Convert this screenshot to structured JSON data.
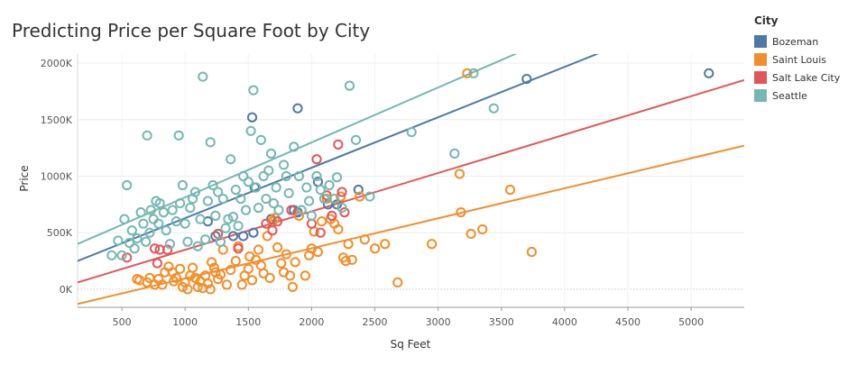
{
  "chart_data": {
    "type": "scatter",
    "title": "Predicting Price per Square Foot by City",
    "xlabel": "Sq Feet",
    "ylabel": "Price",
    "xlim": [
      150,
      5420
    ],
    "ylim": [
      -160000,
      2080000
    ],
    "x_ticks": [
      500,
      1000,
      1500,
      2000,
      2500,
      3000,
      3500,
      4000,
      4500,
      5000
    ],
    "x_tick_labels": [
      "500",
      "1000",
      "1500",
      "2000",
      "2500",
      "3000",
      "3500",
      "4000",
      "4500",
      "5000"
    ],
    "y_ticks": [
      0,
      500000,
      1000000,
      1500000,
      2000000
    ],
    "y_tick_labels": [
      "0K",
      "500K",
      "1000K",
      "1500K",
      "2000K"
    ],
    "grid": true,
    "legend_title": "City",
    "legend_position": "right",
    "series": [
      {
        "name": "Bozeman",
        "color": "#4e79a7",
        "trend": [
          [
            150,
            250000
          ],
          [
            5420,
            2600000
          ]
        ],
        "points": [
          [
            1380,
            470000
          ],
          [
            1460,
            470000
          ],
          [
            1530,
            1520000
          ],
          [
            1540,
            500000
          ],
          [
            1550,
            900000
          ],
          [
            1860,
            700000
          ],
          [
            1890,
            680000
          ],
          [
            1890,
            1600000
          ],
          [
            2050,
            950000
          ],
          [
            2130,
            750000
          ],
          [
            2200,
            750000
          ],
          [
            2370,
            880000
          ],
          [
            3700,
            1860000
          ],
          [
            5140,
            1910000
          ],
          [
            1180,
            600000
          ],
          [
            1240,
            470000
          ],
          [
            1680,
            620000
          ]
        ]
      },
      {
        "name": "Saint Louis",
        "color": "#f28e2b",
        "trend": [
          [
            150,
            -130000
          ],
          [
            5420,
            1270000
          ]
        ],
        "points": [
          [
            620,
            90000
          ],
          [
            640,
            80000
          ],
          [
            700,
            60000
          ],
          [
            720,
            100000
          ],
          [
            760,
            40000
          ],
          [
            790,
            90000
          ],
          [
            820,
            40000
          ],
          [
            840,
            150000
          ],
          [
            870,
            200000
          ],
          [
            900,
            150000
          ],
          [
            910,
            70000
          ],
          [
            930,
            100000
          ],
          [
            960,
            180000
          ],
          [
            980,
            20000
          ],
          [
            1000,
            60000
          ],
          [
            1020,
            0
          ],
          [
            1040,
            120000
          ],
          [
            1060,
            190000
          ],
          [
            1080,
            100000
          ],
          [
            1100,
            20000
          ],
          [
            1120,
            70000
          ],
          [
            1140,
            10000
          ],
          [
            1160,
            120000
          ],
          [
            1180,
            50000
          ],
          [
            1200,
            0
          ],
          [
            1210,
            240000
          ],
          [
            1230,
            190000
          ],
          [
            1240,
            150000
          ],
          [
            1260,
            90000
          ],
          [
            1280,
            130000
          ],
          [
            1300,
            350000
          ],
          [
            1330,
            40000
          ],
          [
            1360,
            170000
          ],
          [
            1400,
            250000
          ],
          [
            1420,
            380000
          ],
          [
            1450,
            40000
          ],
          [
            1470,
            120000
          ],
          [
            1500,
            180000
          ],
          [
            1510,
            290000
          ],
          [
            1530,
            80000
          ],
          [
            1560,
            260000
          ],
          [
            1580,
            350000
          ],
          [
            1600,
            210000
          ],
          [
            1620,
            140000
          ],
          [
            1650,
            470000
          ],
          [
            1670,
            100000
          ],
          [
            1690,
            600000
          ],
          [
            1710,
            630000
          ],
          [
            1730,
            370000
          ],
          [
            1760,
            230000
          ],
          [
            1780,
            150000
          ],
          [
            1800,
            310000
          ],
          [
            1830,
            120000
          ],
          [
            1850,
            20000
          ],
          [
            1870,
            240000
          ],
          [
            1900,
            650000
          ],
          [
            1950,
            120000
          ],
          [
            1980,
            300000
          ],
          [
            2000,
            360000
          ],
          [
            2020,
            510000
          ],
          [
            2050,
            330000
          ],
          [
            2080,
            600000
          ],
          [
            2120,
            800000
          ],
          [
            2150,
            620000
          ],
          [
            2180,
            580000
          ],
          [
            2210,
            530000
          ],
          [
            2230,
            820000
          ],
          [
            2250,
            280000
          ],
          [
            2270,
            250000
          ],
          [
            2290,
            400000
          ],
          [
            2320,
            260000
          ],
          [
            2380,
            820000
          ],
          [
            2420,
            440000
          ],
          [
            2500,
            360000
          ],
          [
            2580,
            400000
          ],
          [
            2680,
            60000
          ],
          [
            2950,
            400000
          ],
          [
            3170,
            1020000
          ],
          [
            3180,
            680000
          ],
          [
            3260,
            490000
          ],
          [
            3350,
            530000
          ],
          [
            3570,
            880000
          ],
          [
            3740,
            330000
          ],
          [
            3230,
            1910000
          ]
        ]
      },
      {
        "name": "Salt Lake City",
        "color": "#e15759",
        "trend": [
          [
            150,
            60000
          ],
          [
            5420,
            1850000
          ]
        ],
        "points": [
          [
            540,
            280000
          ],
          [
            760,
            360000
          ],
          [
            780,
            230000
          ],
          [
            800,
            350000
          ],
          [
            860,
            350000
          ],
          [
            1260,
            490000
          ],
          [
            1420,
            360000
          ],
          [
            1640,
            580000
          ],
          [
            1690,
            520000
          ],
          [
            1730,
            600000
          ],
          [
            1840,
            700000
          ],
          [
            2000,
            580000
          ],
          [
            2040,
            1150000
          ],
          [
            2070,
            500000
          ],
          [
            2120,
            830000
          ],
          [
            2160,
            650000
          ],
          [
            2210,
            1280000
          ],
          [
            2240,
            860000
          ],
          [
            2260,
            680000
          ]
        ]
      },
      {
        "name": "Seattle",
        "color": "#76b7b2",
        "trend": [
          [
            150,
            400000
          ],
          [
            5420,
            2960000
          ]
        ],
        "points": [
          [
            420,
            300000
          ],
          [
            470,
            430000
          ],
          [
            500,
            300000
          ],
          [
            520,
            620000
          ],
          [
            540,
            920000
          ],
          [
            560,
            410000
          ],
          [
            580,
            520000
          ],
          [
            600,
            360000
          ],
          [
            620,
            450000
          ],
          [
            650,
            680000
          ],
          [
            670,
            580000
          ],
          [
            690,
            420000
          ],
          [
            700,
            1360000
          ],
          [
            720,
            500000
          ],
          [
            730,
            700000
          ],
          [
            750,
            620000
          ],
          [
            770,
            780000
          ],
          [
            790,
            580000
          ],
          [
            800,
            760000
          ],
          [
            830,
            680000
          ],
          [
            850,
            520000
          ],
          [
            880,
            400000
          ],
          [
            900,
            700000
          ],
          [
            930,
            600000
          ],
          [
            950,
            1360000
          ],
          [
            960,
            760000
          ],
          [
            980,
            920000
          ],
          [
            1000,
            580000
          ],
          [
            1020,
            420000
          ],
          [
            1040,
            720000
          ],
          [
            1060,
            800000
          ],
          [
            1080,
            860000
          ],
          [
            1100,
            380000
          ],
          [
            1120,
            620000
          ],
          [
            1140,
            1880000
          ],
          [
            1160,
            440000
          ],
          [
            1180,
            780000
          ],
          [
            1200,
            1300000
          ],
          [
            1220,
            920000
          ],
          [
            1240,
            650000
          ],
          [
            1260,
            860000
          ],
          [
            1280,
            420000
          ],
          [
            1300,
            800000
          ],
          [
            1320,
            540000
          ],
          [
            1340,
            620000
          ],
          [
            1360,
            1150000
          ],
          [
            1380,
            640000
          ],
          [
            1400,
            880000
          ],
          [
            1420,
            560000
          ],
          [
            1440,
            800000
          ],
          [
            1460,
            1000000
          ],
          [
            1480,
            700000
          ],
          [
            1500,
            950000
          ],
          [
            1520,
            1400000
          ],
          [
            1540,
            1760000
          ],
          [
            1560,
            900000
          ],
          [
            1580,
            720000
          ],
          [
            1600,
            1320000
          ],
          [
            1620,
            1000000
          ],
          [
            1640,
            800000
          ],
          [
            1660,
            1050000
          ],
          [
            1680,
            1200000
          ],
          [
            1700,
            760000
          ],
          [
            1720,
            900000
          ],
          [
            1740,
            700000
          ],
          [
            1780,
            1100000
          ],
          [
            1800,
            1000000
          ],
          [
            1820,
            850000
          ],
          [
            1860,
            1260000
          ],
          [
            1900,
            1000000
          ],
          [
            1920,
            700000
          ],
          [
            1960,
            900000
          ],
          [
            1980,
            780000
          ],
          [
            2000,
            650000
          ],
          [
            2040,
            1000000
          ],
          [
            2070,
            880000
          ],
          [
            2100,
            800000
          ],
          [
            2140,
            920000
          ],
          [
            2180,
            800000
          ],
          [
            2200,
            990000
          ],
          [
            2240,
            720000
          ],
          [
            2300,
            1800000
          ],
          [
            2350,
            1320000
          ],
          [
            2460,
            820000
          ],
          [
            2790,
            1390000
          ],
          [
            3130,
            1200000
          ],
          [
            3280,
            1910000
          ],
          [
            3440,
            1600000
          ]
        ]
      }
    ]
  }
}
